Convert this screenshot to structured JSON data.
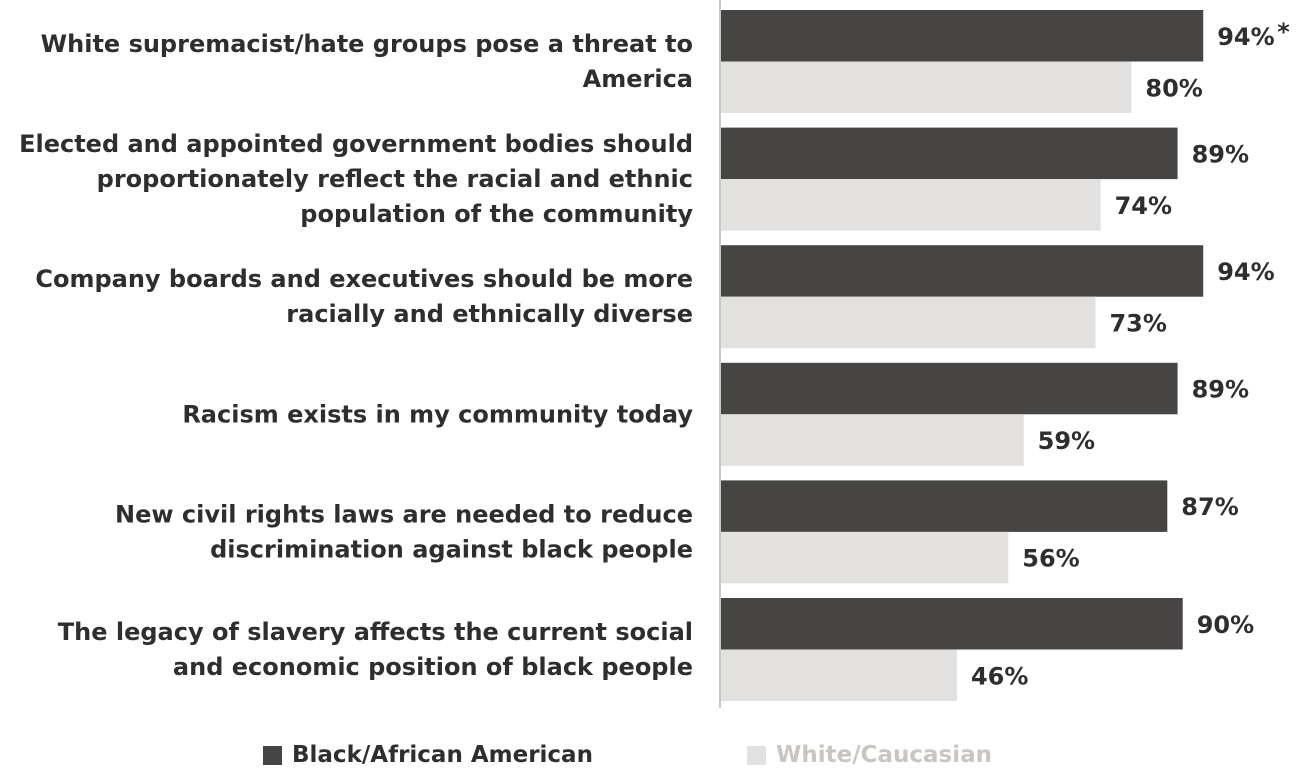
{
  "chart_data": {
    "type": "bar",
    "orientation": "horizontal",
    "categories": [
      [
        "White supremacist/hate groups pose a threat to",
        "America"
      ],
      [
        "Elected and appointed government bodies should",
        "proportionately reflect the racial and ethnic",
        "population of the community"
      ],
      [
        "Company boards and executives should be more",
        "racially and ethnically diverse"
      ],
      [
        "Racism exists in my community today"
      ],
      [
        "New civil rights laws are needed to reduce",
        "discrimination against black people"
      ],
      [
        "The legacy of slavery affects the current social",
        "and economic position of black people"
      ]
    ],
    "series": [
      {
        "name": "Black/African American",
        "color": "#464544",
        "values": [
          94,
          89,
          94,
          89,
          87,
          90
        ],
        "labels": [
          "94%",
          "89%",
          "94%",
          "89%",
          "87%",
          "90%"
        ]
      },
      {
        "name": "White/Caucasian",
        "color": "#e2e1df",
        "values": [
          80,
          74,
          73,
          59,
          56,
          46
        ],
        "labels": [
          "80%",
          "74%",
          "73%",
          "59%",
          "56%",
          "46%"
        ]
      }
    ],
    "annotations": [
      {
        "category_index": 0,
        "series_index": 0,
        "text": "*"
      }
    ],
    "xlim": [
      0,
      100
    ],
    "grid": false,
    "legend_position": "bottom"
  },
  "legend": {
    "black_label": "Black/African American",
    "white_label": "White/Caucasian",
    "black_text_color": "#2e2e2e",
    "white_text_color": "#c9c6c1"
  }
}
